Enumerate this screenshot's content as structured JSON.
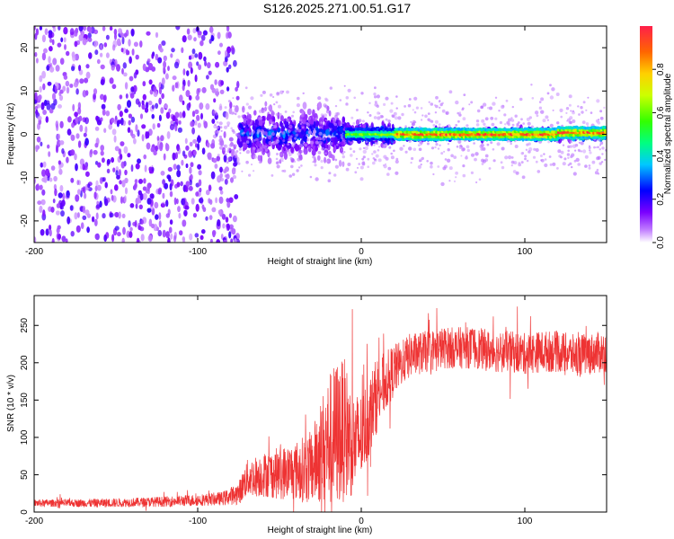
{
  "title": "S126.2025.271.00.51.G17",
  "colors": {
    "snr_line": "#ee3333",
    "point_base": "#6a16e6"
  },
  "chart_data": [
    {
      "type": "heatmap",
      "name": "spectrogram",
      "xlabel": "Height of straight line (km)",
      "ylabel": "Frequency (Hz)",
      "xlim": [
        -200,
        150
      ],
      "ylim": [
        -25,
        25
      ],
      "xticks": [
        -200,
        -100,
        0,
        100
      ],
      "yticks": [
        -20,
        -10,
        0,
        10,
        20
      ],
      "colorbar": {
        "label": "Normalized spectral amplitude",
        "range": [
          0,
          1
        ],
        "ticks": [
          0.0,
          0.2,
          0.4,
          0.6,
          0.8
        ]
      },
      "description_bands": [
        {
          "x_range": [
            -200,
            -75
          ],
          "freq_spread": 25,
          "amplitude": 0.15
        },
        {
          "x_range": [
            -75,
            -10
          ],
          "freq_spread": 8,
          "amplitude": 0.3
        },
        {
          "x_range": [
            -10,
            20
          ],
          "freq_spread": 3,
          "amplitude": 0.6
        },
        {
          "x_range": [
            20,
            150
          ],
          "freq_spread": 1.5,
          "amplitude": 0.9
        }
      ]
    },
    {
      "type": "line",
      "name": "snr",
      "xlabel": "Height of straight line (km)",
      "ylabel": "SNR (10 * v/v)",
      "xlim": [
        -200,
        150
      ],
      "ylim": [
        0,
        290
      ],
      "xticks": [
        -200,
        -100,
        0,
        100
      ],
      "yticks": [
        0,
        50,
        100,
        150,
        200,
        250
      ],
      "series": [
        {
          "name": "SNR",
          "x": [
            -200,
            -180,
            -160,
            -140,
            -120,
            -100,
            -85,
            -75,
            -70,
            -60,
            -50,
            -40,
            -30,
            -25,
            -20,
            -15,
            -10,
            -5,
            0,
            5,
            10,
            15,
            20,
            25,
            30,
            40,
            50,
            60,
            70,
            80,
            90,
            100,
            110,
            120,
            130,
            140,
            150
          ],
          "y": [
            12,
            12,
            12,
            13,
            14,
            16,
            18,
            25,
            45,
            50,
            52,
            55,
            60,
            80,
            95,
            105,
            110,
            90,
            100,
            130,
            160,
            175,
            190,
            200,
            210,
            215,
            220,
            220,
            220,
            215,
            215,
            212,
            215,
            215,
            210,
            212,
            215
          ],
          "noise_amplitude": [
            5,
            5,
            6,
            6,
            7,
            8,
            9,
            15,
            25,
            30,
            35,
            40,
            50,
            70,
            90,
            100,
            95,
            70,
            60,
            55,
            50,
            40,
            35,
            30,
            30,
            28,
            28,
            28,
            28,
            28,
            28,
            28,
            28,
            28,
            28,
            28,
            28
          ]
        }
      ]
    }
  ]
}
